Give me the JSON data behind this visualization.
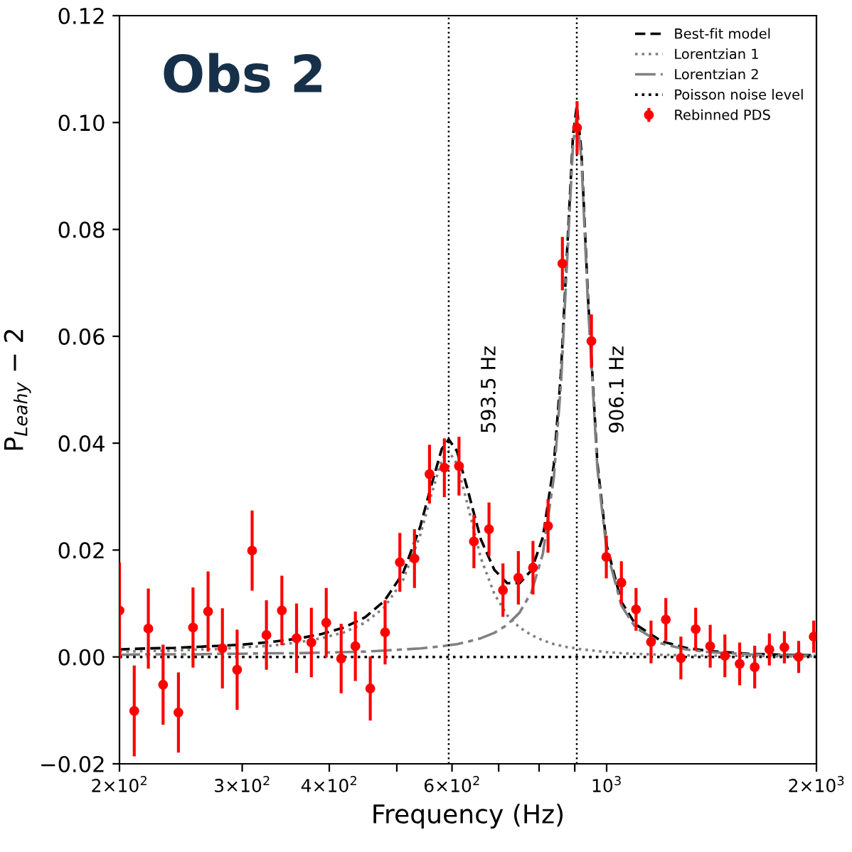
{
  "chart_data": {
    "type": "line",
    "title": "Obs 2",
    "xlabel": "Frequency (Hz)",
    "ylabel": "P$_{Leahy}$ − 2",
    "log": "x",
    "xlim": [
      200,
      2000
    ],
    "ylim": [
      -0.02,
      0.12
    ],
    "xticks": [
      {
        "value": 200,
        "label": "2×10$^{2}$"
      },
      {
        "value": 300,
        "label": "3×10$^{2}$"
      },
      {
        "value": 400,
        "label": "4×10$^{2}$"
      },
      {
        "value": 500,
        "label": null
      },
      {
        "value": 600,
        "label": "6×10$^{2}$"
      },
      {
        "value": 700,
        "label": null
      },
      {
        "value": 800,
        "label": null
      },
      {
        "value": 900,
        "label": null
      },
      {
        "value": 1000,
        "label": "10$^{3}$"
      },
      {
        "value": 2000,
        "label": "2×10$^{3}$"
      }
    ],
    "yticks": [
      {
        "value": -0.02,
        "label": "−0.02"
      },
      {
        "value": 0,
        "label": "0.00"
      },
      {
        "value": 0.02,
        "label": "0.02"
      },
      {
        "value": 0.04,
        "label": "0.04"
      },
      {
        "value": 0.06,
        "label": "0.06"
      },
      {
        "value": 0.08,
        "label": "0.08"
      },
      {
        "value": 0.1,
        "label": "0.10"
      },
      {
        "value": 0.12,
        "label": "0.12"
      }
    ],
    "grid": false,
    "legend": "top right",
    "ref_lines": [
      {
        "axis": "x",
        "value": 593.5,
        "label": "593.5 Hz",
        "color": "#000000",
        "line_style": "dotted"
      },
      {
        "axis": "x",
        "value": 906.1,
        "label": "906.1 Hz",
        "color": "#000000",
        "line_style": "dotted"
      }
    ],
    "series": [
      {
        "name": "Best-fit model",
        "color": "#000000",
        "line_style": "dashed",
        "x": [
          200,
          220,
          240,
          260,
          280,
          300,
          330,
          360,
          390,
          420,
          450,
          480,
          510,
          540,
          560,
          580,
          593.5,
          610,
          630,
          660,
          690,
          720,
          750,
          780,
          810,
          840,
          860,
          880,
          895,
          906.1,
          920,
          940,
          970,
          1000,
          1050,
          1100,
          1200,
          1300,
          1400,
          1600,
          1800,
          2000
        ],
        "values": [
          0.0014,
          0.0016,
          0.0017,
          0.0019,
          0.0021,
          0.0023,
          0.0028,
          0.0034,
          0.0043,
          0.0055,
          0.0074,
          0.0105,
          0.0156,
          0.0243,
          0.032,
          0.0389,
          0.0407,
          0.0385,
          0.0319,
          0.022,
          0.0163,
          0.0138,
          0.0138,
          0.0162,
          0.0224,
          0.036,
          0.0533,
          0.079,
          0.0977,
          0.1031,
          0.0946,
          0.0676,
          0.0362,
          0.0209,
          0.0103,
          0.0061,
          0.0029,
          0.0017,
          0.0011,
          0.0006,
          0.0004,
          0.0003
        ]
      },
      {
        "name": "Lorentzian 1",
        "color": "#808080",
        "line_style": "dotted",
        "x": [
          200,
          220,
          240,
          260,
          280,
          300,
          330,
          360,
          390,
          420,
          450,
          480,
          510,
          540,
          560,
          580,
          593.5,
          610,
          630,
          660,
          690,
          720,
          750,
          780,
          810,
          840,
          860,
          880,
          895,
          906.1,
          920,
          940,
          970,
          1000,
          1050,
          1100,
          1200,
          1300,
          1400,
          1600,
          1800,
          2000
        ],
        "values": [
          0.001,
          0.0011,
          0.0012,
          0.0014,
          0.0015,
          0.0018,
          0.0021,
          0.0027,
          0.0035,
          0.0046,
          0.0064,
          0.0093,
          0.0143,
          0.0227,
          0.0302,
          0.0369,
          0.0385,
          0.0361,
          0.0291,
          0.0185,
          0.0118,
          0.0078,
          0.0055,
          0.0041,
          0.0031,
          0.0024,
          0.0021,
          0.0018,
          0.0017,
          0.0016,
          0.0014,
          0.0013,
          0.0011,
          0.0009,
          0.0007,
          0.0006,
          0.0004,
          0.0003,
          0.0002,
          0.0002,
          0.0001,
          0.0001
        ]
      },
      {
        "name": "Lorentzian 2",
        "color": "#808080",
        "line_style": "dashdot",
        "x": [
          200,
          220,
          240,
          260,
          280,
          300,
          330,
          360,
          390,
          420,
          450,
          480,
          510,
          540,
          560,
          580,
          593.5,
          610,
          630,
          660,
          690,
          720,
          750,
          780,
          810,
          840,
          860,
          880,
          895,
          906.1,
          920,
          940,
          970,
          1000,
          1050,
          1100,
          1200,
          1300,
          1400,
          1600,
          1800,
          2000
        ],
        "values": [
          0.0004,
          0.0005,
          0.0005,
          0.0005,
          0.0006,
          0.0006,
          0.0007,
          0.0007,
          0.0008,
          0.0009,
          0.001,
          0.0012,
          0.0014,
          0.0016,
          0.0018,
          0.002,
          0.0022,
          0.0024,
          0.0028,
          0.0035,
          0.0045,
          0.006,
          0.0083,
          0.0121,
          0.0193,
          0.0336,
          0.0512,
          0.0772,
          0.096,
          0.1015,
          0.0932,
          0.0663,
          0.0352,
          0.02,
          0.0096,
          0.0055,
          0.0025,
          0.0014,
          0.0009,
          0.0005,
          0.0003,
          0.0002
        ]
      },
      {
        "name": "Poisson noise level",
        "color": "#000000",
        "line_style": "dotted",
        "x": [
          200,
          2000
        ],
        "values": [
          0,
          0
        ]
      },
      {
        "name": "Rebinned PDS",
        "type": "scatter",
        "color": "#ff0000",
        "marker": "circle",
        "x": [
          200,
          210,
          220,
          231,
          243,
          255,
          268,
          281,
          295,
          310,
          325,
          342,
          359,
          377,
          396,
          416,
          436,
          458,
          481,
          505,
          530,
          557,
          585,
          614,
          645,
          678,
          710,
          747,
          784,
          824,
          864,
          907,
          951,
          999,
          1050,
          1102,
          1158,
          1216,
          1278,
          1342,
          1408,
          1478,
          1552,
          1631,
          1712,
          1799,
          1886,
          1982
        ],
        "values": [
          0.0087,
          -0.0101,
          0.0053,
          -0.0052,
          -0.0104,
          0.0055,
          0.0085,
          0.0016,
          -0.0024,
          0.0199,
          0.0041,
          0.0087,
          0.0035,
          0.0027,
          0.0064,
          -0.0003,
          0.002,
          -0.0059,
          0.0046,
          0.0177,
          0.0184,
          0.0342,
          0.0354,
          0.0357,
          0.0216,
          0.0239,
          0.0125,
          0.0148,
          0.0167,
          0.0245,
          0.0736,
          0.099,
          0.0591,
          0.0187,
          0.0139,
          0.0089,
          0.0028,
          0.007,
          -0.0002,
          0.0052,
          0.002,
          0.0002,
          -0.0013,
          -0.0019,
          0.0014,
          0.0018,
          0.0,
          0.0038
        ],
        "errors": [
          0.009,
          0.0085,
          0.0075,
          0.0075,
          0.0075,
          0.0075,
          0.0075,
          0.0075,
          0.0075,
          0.0075,
          0.0065,
          0.0065,
          0.0065,
          0.0065,
          0.0065,
          0.0065,
          0.0065,
          0.006,
          0.006,
          0.0055,
          0.0055,
          0.0055,
          0.0055,
          0.0055,
          0.005,
          0.005,
          0.005,
          0.005,
          0.005,
          0.005,
          0.005,
          0.005,
          0.005,
          0.004,
          0.004,
          0.004,
          0.004,
          0.004,
          0.004,
          0.004,
          0.004,
          0.004,
          0.004,
          0.004,
          0.003,
          0.003,
          0.003,
          0.003
        ]
      }
    ]
  }
}
